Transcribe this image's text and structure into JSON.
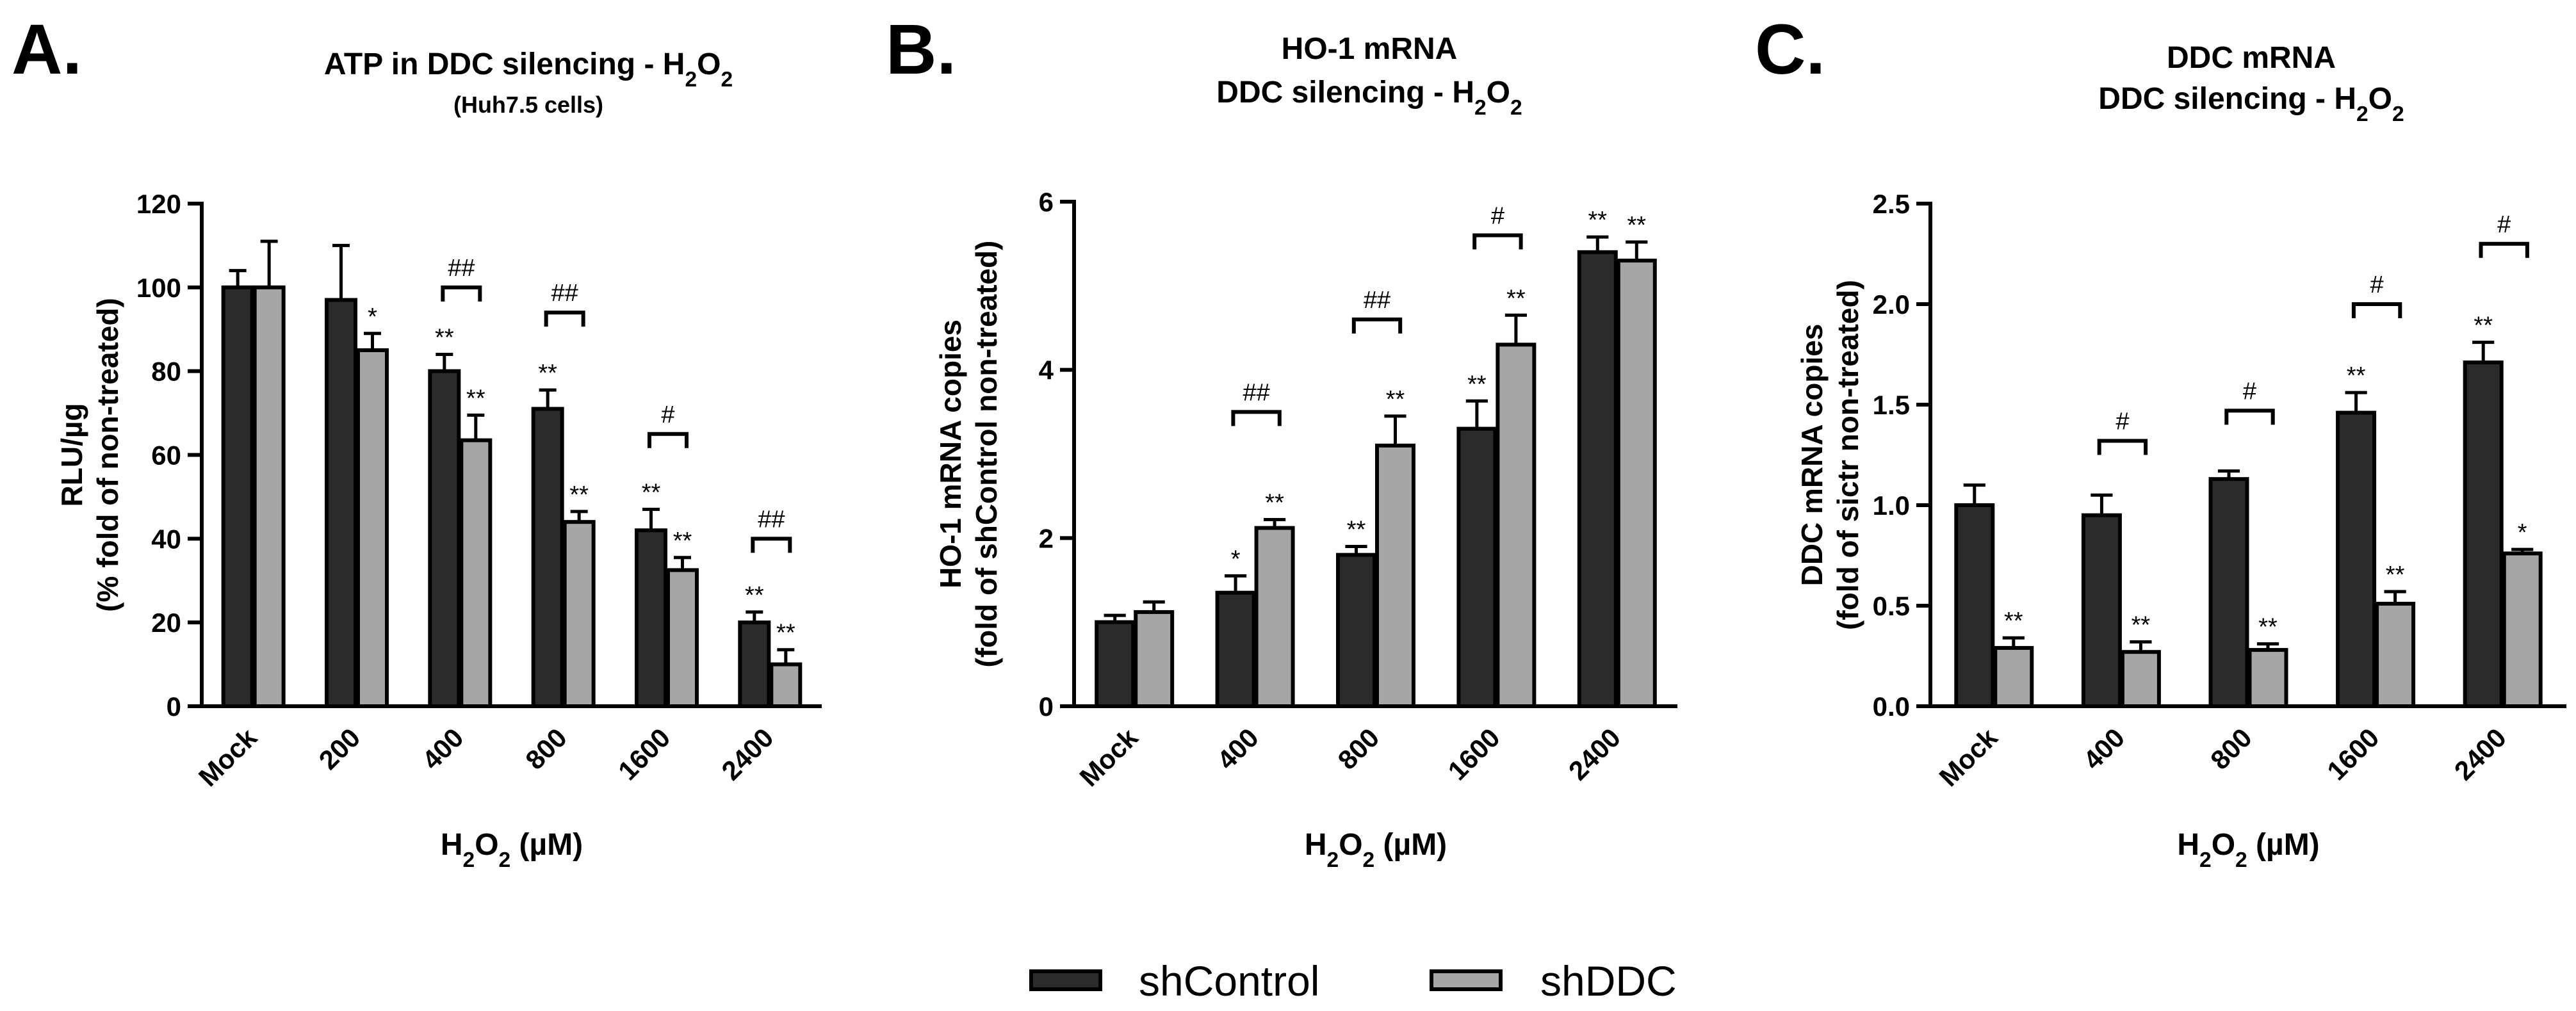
{
  "legend": [
    {
      "label": "shControl",
      "color": "#2b2b2b"
    },
    {
      "label": "shDDC",
      "color": "#a6a6a6"
    }
  ],
  "chart_data": [
    {
      "type": "bar",
      "panel": "A.",
      "title": "ATP in DDC silencing - H₂O₂",
      "subtitle": "(Huh7.5 cells)",
      "xlabel": "H₂O₂ (µM)",
      "ylabel": [
        "RLU/µg",
        "(% fold of non-treated)"
      ],
      "ylim": [
        0,
        120
      ],
      "yticks": [
        0,
        20,
        40,
        60,
        80,
        100,
        120
      ],
      "categories": [
        "Mock",
        "200",
        "400",
        "800",
        "1600",
        "2400"
      ],
      "series": [
        {
          "name": "shControl",
          "values": [
            100,
            97,
            80,
            71,
            42,
            20
          ],
          "errors": [
            4,
            13,
            4,
            4.5,
            5,
            2.5
          ],
          "stars": [
            "",
            "",
            "**",
            "**",
            "**",
            "**"
          ]
        },
        {
          "name": "shDDC",
          "values": [
            100,
            85,
            63.5,
            44,
            32.5,
            10
          ],
          "errors": [
            11,
            4,
            6,
            2.5,
            3,
            3.5
          ],
          "stars": [
            "",
            "*",
            "**",
            "**",
            "**",
            "**"
          ]
        }
      ],
      "brackets": [
        {
          "category": "400",
          "label": "##",
          "y": 100
        },
        {
          "category": "800",
          "label": "##",
          "y": 94
        },
        {
          "category": "1600",
          "label": "#",
          "y": 65
        },
        {
          "category": "2400",
          "label": "##",
          "y": 40
        }
      ]
    },
    {
      "type": "bar",
      "panel": "B.",
      "title": "HO-1 mRNA",
      "subtitle": "DDC silencing - H₂O₂",
      "xlabel": "H₂O₂ (µM)",
      "ylabel": [
        "HO-1 mRNA copies",
        "(fold of shControl non-treated)"
      ],
      "ylim": [
        0,
        6
      ],
      "yticks": [
        0,
        2,
        4,
        6
      ],
      "categories": [
        "Mock",
        "400",
        "800",
        "1600",
        "2400"
      ],
      "series": [
        {
          "name": "shControl",
          "values": [
            1.0,
            1.35,
            1.8,
            3.3,
            5.4
          ],
          "errors": [
            0.08,
            0.2,
            0.1,
            0.33,
            0.18
          ],
          "stars": [
            "",
            "*",
            "**",
            "**",
            "**"
          ]
        },
        {
          "name": "shDDC",
          "values": [
            1.12,
            2.12,
            3.1,
            4.3,
            5.3
          ],
          "errors": [
            0.12,
            0.1,
            0.35,
            0.35,
            0.22
          ],
          "stars": [
            "",
            "**",
            "**",
            "**",
            "**"
          ]
        }
      ],
      "brackets": [
        {
          "category": "400",
          "label": "##",
          "y": 3.5
        },
        {
          "category": "800",
          "label": "##",
          "y": 4.6
        },
        {
          "category": "1600",
          "label": "#",
          "y": 5.6
        }
      ]
    },
    {
      "type": "bar",
      "panel": "C.",
      "title": "DDC mRNA",
      "subtitle": "DDC silencing - H₂O₂",
      "xlabel": "H₂O₂ (µM)",
      "ylabel": [
        "DDC mRNA copies",
        "(fold of sictr non-treated)"
      ],
      "ylim": [
        0,
        2.5
      ],
      "yticks": [
        "0.0",
        "0.5",
        "1.0",
        "1.5",
        "2.0",
        "2.5"
      ],
      "categories": [
        "Mock",
        "400",
        "800",
        "1600",
        "2400"
      ],
      "series": [
        {
          "name": "shControl",
          "values": [
            1.0,
            0.95,
            1.13,
            1.46,
            1.71
          ],
          "errors": [
            0.1,
            0.1,
            0.04,
            0.1,
            0.1
          ],
          "stars": [
            "",
            "",
            "",
            "**",
            "**"
          ]
        },
        {
          "name": "shDDC",
          "values": [
            0.29,
            0.27,
            0.28,
            0.51,
            0.76
          ],
          "errors": [
            0.05,
            0.05,
            0.03,
            0.06,
            0.02
          ],
          "stars": [
            "**",
            "**",
            "**",
            "**",
            "*"
          ]
        }
      ],
      "brackets": [
        {
          "category": "400",
          "label": "#",
          "y": 1.32
        },
        {
          "category": "800",
          "label": "#",
          "y": 1.47
        },
        {
          "category": "1600",
          "label": "#",
          "y": 2.0
        },
        {
          "category": "2400",
          "label": "#",
          "y": 2.3
        }
      ]
    }
  ]
}
